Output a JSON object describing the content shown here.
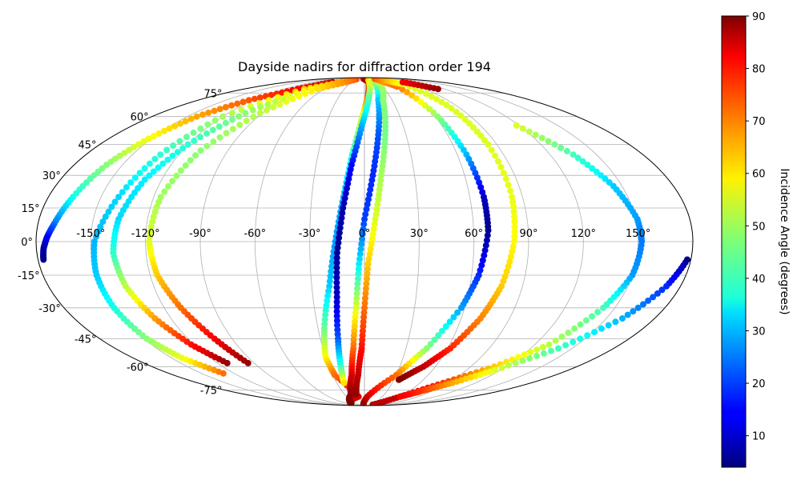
{
  "chart_data": {
    "type": "scatter",
    "projection": "mollweide",
    "title": "Dayside nadirs for diffraction order 194",
    "xlabel": "",
    "ylabel": "",
    "grid": true,
    "x_ticks": [
      "-150°",
      "-120°",
      "-90°",
      "-60°",
      "-30°",
      "0°",
      "30°",
      "60°",
      "90°",
      "120°",
      "150°"
    ],
    "x_tick_values": [
      -150,
      -120,
      -90,
      -60,
      -30,
      0,
      30,
      60,
      90,
      120,
      150
    ],
    "y_ticks": [
      "-75°",
      "-60°",
      "-45°",
      "-30°",
      "-15°",
      "0°",
      "15°",
      "30°",
      "45°",
      "60°",
      "75°"
    ],
    "y_tick_values": [
      -75,
      -60,
      -45,
      -30,
      -15,
      0,
      15,
      30,
      45,
      60,
      75
    ],
    "xlim": [
      -180,
      180
    ],
    "ylim": [
      -90,
      90
    ],
    "colormap": "jet",
    "colorbar": {
      "label": "Incidence Angle (degrees)",
      "range": [
        4,
        90
      ],
      "ticks": [
        10,
        20,
        30,
        40,
        50,
        60,
        70,
        80,
        90
      ],
      "tick_labels": [
        "10",
        "20",
        "30",
        "40",
        "50",
        "60",
        "70",
        "80",
        "90"
      ]
    },
    "series": [
      {
        "points": [
          {
            "lon": -75,
            "lat": 84,
            "c": 85
          },
          {
            "lon": -100,
            "lat": 78,
            "c": 80
          },
          {
            "lon": -125,
            "lat": 70,
            "c": 72
          },
          {
            "lon": -142,
            "lat": 60,
            "c": 65
          },
          {
            "lon": -152,
            "lat": 48,
            "c": 57
          },
          {
            "lon": -160,
            "lat": 35,
            "c": 48
          },
          {
            "lon": -166,
            "lat": 20,
            "c": 38
          },
          {
            "lon": -171,
            "lat": 8,
            "c": 25
          },
          {
            "lon": -174,
            "lat": 2,
            "c": 15
          },
          {
            "lon": -176,
            "lat": -3,
            "c": 8
          },
          {
            "lon": -177,
            "lat": -8,
            "c": 5
          }
        ]
      },
      {
        "points": [
          {
            "lon": -45,
            "lat": 86,
            "c": 70
          },
          {
            "lon": -90,
            "lat": 78,
            "c": 62
          },
          {
            "lon": -120,
            "lat": 60,
            "c": 50
          },
          {
            "lon": -132,
            "lat": 40,
            "c": 40
          },
          {
            "lon": -140,
            "lat": 20,
            "c": 33
          },
          {
            "lon": -148,
            "lat": 0,
            "c": 30
          },
          {
            "lon": -150,
            "lat": -15,
            "c": 32
          },
          {
            "lon": -150,
            "lat": -30,
            "c": 38
          },
          {
            "lon": -148,
            "lat": -45,
            "c": 48
          },
          {
            "lon": -142,
            "lat": -55,
            "c": 56
          },
          {
            "lon": -130,
            "lat": -64,
            "c": 70
          }
        ]
      },
      {
        "points": [
          {
            "lon": -40,
            "lat": 86,
            "c": 68
          },
          {
            "lon": -80,
            "lat": 78,
            "c": 58
          },
          {
            "lon": -105,
            "lat": 62,
            "c": 48
          },
          {
            "lon": -120,
            "lat": 45,
            "c": 40
          },
          {
            "lon": -130,
            "lat": 28,
            "c": 35
          },
          {
            "lon": -136,
            "lat": 10,
            "c": 33
          },
          {
            "lon": -138,
            "lat": -5,
            "c": 40
          },
          {
            "lon": -136,
            "lat": -20,
            "c": 52
          },
          {
            "lon": -130,
            "lat": -35,
            "c": 66
          },
          {
            "lon": -122,
            "lat": -48,
            "c": 78
          },
          {
            "lon": -112,
            "lat": -58,
            "c": 88
          }
        ]
      },
      {
        "points": [
          {
            "lon": -30,
            "lat": 87,
            "c": 72
          },
          {
            "lon": -70,
            "lat": 78,
            "c": 60
          },
          {
            "lon": -92,
            "lat": 62,
            "c": 52
          },
          {
            "lon": -108,
            "lat": 42,
            "c": 48
          },
          {
            "lon": -116,
            "lat": 20,
            "c": 50
          },
          {
            "lon": -118,
            "lat": 0,
            "c": 55
          },
          {
            "lon": -116,
            "lat": -15,
            "c": 62
          },
          {
            "lon": -110,
            "lat": -30,
            "c": 70
          },
          {
            "lon": -102,
            "lat": -45,
            "c": 80
          },
          {
            "lon": -95,
            "lat": -58,
            "c": 88
          }
        ]
      },
      {
        "points": [
          {
            "lon": -5,
            "lat": 88,
            "c": 85
          },
          {
            "lon": 10,
            "lat": 85,
            "c": 88
          },
          {
            "lon": 5,
            "lat": 75,
            "c": 75
          },
          {
            "lon": -2,
            "lat": 60,
            "c": 55
          },
          {
            "lon": -8,
            "lat": 40,
            "c": 40
          },
          {
            "lon": -12,
            "lat": 20,
            "c": 30
          },
          {
            "lon": -16,
            "lat": 0,
            "c": 28
          },
          {
            "lon": -20,
            "lat": -20,
            "c": 32
          },
          {
            "lon": -26,
            "lat": -40,
            "c": 45
          },
          {
            "lon": -30,
            "lat": -55,
            "c": 58
          },
          {
            "lon": -28,
            "lat": -65,
            "c": 70
          },
          {
            "lon": -10,
            "lat": -80,
            "c": 82
          },
          {
            "lon": -50,
            "lat": -87,
            "c": 86
          }
        ]
      },
      {
        "points": [
          {
            "lon": 12,
            "lat": 86,
            "c": 62
          },
          {
            "lon": 5,
            "lat": 72,
            "c": 45
          },
          {
            "lon": -2,
            "lat": 55,
            "c": 30
          },
          {
            "lon": -8,
            "lat": 35,
            "c": 15
          },
          {
            "lon": -12,
            "lat": 15,
            "c": 8
          },
          {
            "lon": -15,
            "lat": -5,
            "c": 6
          },
          {
            "lon": -16,
            "lat": -25,
            "c": 10
          },
          {
            "lon": -18,
            "lat": -45,
            "c": 22
          },
          {
            "lon": -20,
            "lat": -60,
            "c": 40
          },
          {
            "lon": -22,
            "lat": -70,
            "c": 60
          }
        ]
      },
      {
        "points": [
          {
            "lon": 25,
            "lat": 87,
            "c": 55
          },
          {
            "lon": 15,
            "lat": 70,
            "c": 32
          },
          {
            "lon": 10,
            "lat": 50,
            "c": 22
          },
          {
            "lon": 5,
            "lat": 30,
            "c": 18
          },
          {
            "lon": 0,
            "lat": 10,
            "c": 20
          },
          {
            "lon": -3,
            "lat": -10,
            "c": 35
          },
          {
            "lon": -5,
            "lat": -30,
            "c": 55
          },
          {
            "lon": -8,
            "lat": -50,
            "c": 70
          },
          {
            "lon": -12,
            "lat": -65,
            "c": 82
          },
          {
            "lon": -20,
            "lat": -78,
            "c": 88
          },
          {
            "lon": -40,
            "lat": -86,
            "c": 90
          }
        ]
      },
      {
        "points": [
          {
            "lon": 35,
            "lat": 87,
            "c": 52
          },
          {
            "lon": 20,
            "lat": 70,
            "c": 48
          },
          {
            "lon": 15,
            "lat": 50,
            "c": 46
          },
          {
            "lon": 10,
            "lat": 30,
            "c": 50
          },
          {
            "lon": 6,
            "lat": 10,
            "c": 55
          },
          {
            "lon": 2,
            "lat": -10,
            "c": 62
          },
          {
            "lon": 0,
            "lat": -30,
            "c": 70
          },
          {
            "lon": -2,
            "lat": -50,
            "c": 78
          },
          {
            "lon": -6,
            "lat": -65,
            "c": 84
          },
          {
            "lon": -12,
            "lat": -78,
            "c": 88
          }
        ]
      },
      {
        "points": [
          {
            "lon": 40,
            "lat": 87,
            "c": 65
          },
          {
            "lon": 55,
            "lat": 80,
            "c": 70
          },
          {
            "lon": 62,
            "lat": 60,
            "c": 48
          },
          {
            "lon": 66,
            "lat": 40,
            "c": 30
          },
          {
            "lon": 68,
            "lat": 20,
            "c": 10
          },
          {
            "lon": 68,
            "lat": 5,
            "c": 5
          },
          {
            "lon": 64,
            "lat": -15,
            "c": 18
          },
          {
            "lon": 58,
            "lat": -30,
            "c": 28
          },
          {
            "lon": 45,
            "lat": -50,
            "c": 48
          },
          {
            "lon": 30,
            "lat": -65,
            "c": 70
          },
          {
            "lon": 5,
            "lat": -80,
            "c": 82
          },
          {
            "lon": -5,
            "lat": -88,
            "c": 88
          }
        ]
      },
      {
        "points": [
          {
            "lon": 50,
            "lat": 88,
            "c": 72
          },
          {
            "lon": 75,
            "lat": 82,
            "c": 55
          },
          {
            "lon": 82,
            "lat": 65,
            "c": 55
          },
          {
            "lon": 84,
            "lat": 45,
            "c": 55
          },
          {
            "lon": 84,
            "lat": 20,
            "c": 56
          },
          {
            "lon": 82,
            "lat": 0,
            "c": 58
          },
          {
            "lon": 78,
            "lat": -20,
            "c": 62
          },
          {
            "lon": 72,
            "lat": -35,
            "c": 68
          },
          {
            "lon": 62,
            "lat": -50,
            "c": 76
          },
          {
            "lon": 50,
            "lat": -60,
            "c": 84
          },
          {
            "lon": 35,
            "lat": -68,
            "c": 90
          }
        ]
      },
      {
        "points": [
          {
            "lon": 90,
            "lat": 84,
            "c": 80
          },
          {
            "lon": 110,
            "lat": 78,
            "c": 88
          }
        ]
      },
      {
        "points": [
          {
            "lon": 118,
            "lat": 55,
            "c": 55
          },
          {
            "lon": 135,
            "lat": 40,
            "c": 42
          },
          {
            "lon": 145,
            "lat": 25,
            "c": 32
          },
          {
            "lon": 151,
            "lat": 10,
            "c": 28
          },
          {
            "lon": 152,
            "lat": 0,
            "c": 25
          },
          {
            "lon": 150,
            "lat": -15,
            "c": 28
          },
          {
            "lon": 143,
            "lat": -30,
            "c": 42
          },
          {
            "lon": 130,
            "lat": -48,
            "c": 52
          },
          {
            "lon": 110,
            "lat": -60,
            "c": 62
          },
          {
            "lon": 85,
            "lat": -70,
            "c": 75
          },
          {
            "lon": 60,
            "lat": -80,
            "c": 84
          },
          {
            "lon": 40,
            "lat": -88,
            "c": 85
          }
        ]
      },
      {
        "points": [
          {
            "lon": 178,
            "lat": -8,
            "c": 5
          },
          {
            "lon": 172,
            "lat": -20,
            "c": 18
          },
          {
            "lon": 160,
            "lat": -35,
            "c": 30
          },
          {
            "lon": 140,
            "lat": -50,
            "c": 42
          },
          {
            "lon": 115,
            "lat": -62,
            "c": 55
          },
          {
            "lon": 95,
            "lat": -70,
            "c": 65
          },
          {
            "lon": 75,
            "lat": -76,
            "c": 75
          },
          {
            "lon": 60,
            "lat": -80,
            "c": 80
          }
        ]
      }
    ]
  }
}
